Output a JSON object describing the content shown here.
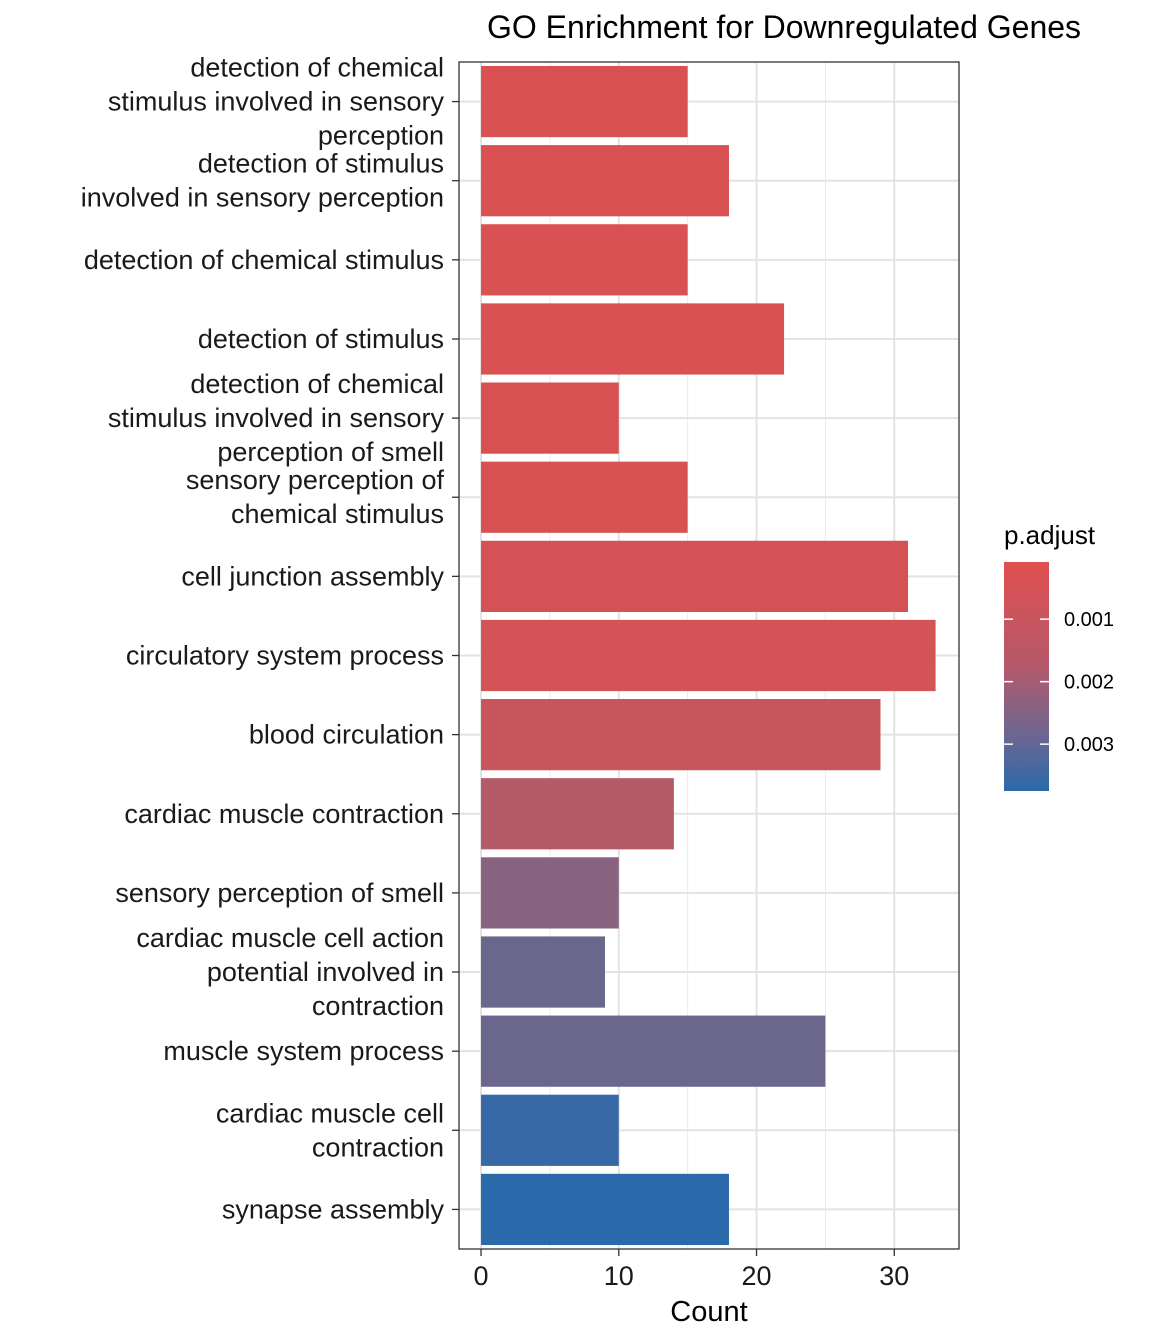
{
  "chart_data": {
    "type": "bar",
    "orientation": "horizontal",
    "title": "GO Enrichment for Downregulated Genes",
    "xlabel": "Count",
    "ylabel": "",
    "xlim": [
      -1.6,
      34.7
    ],
    "xticks": [
      0,
      10,
      20,
      30
    ],
    "grid": true,
    "legend": {
      "title": "p.adjust",
      "placement": "right",
      "type": "colorbar",
      "range": [
        8.5e-05,
        0.00375
      ],
      "ticks": [
        {
          "value": 0.001,
          "label": "0.001"
        },
        {
          "value": 0.002,
          "label": "0.002"
        },
        {
          "value": 0.003,
          "label": "0.003"
        }
      ],
      "low_color": "#e04f4f",
      "high_color": "#2b6aaa"
    },
    "categories": [
      {
        "lines": [
          "detection of chemical",
          "stimulus involved in sensory",
          "perception"
        ],
        "value": 15,
        "color": "#d95152"
      },
      {
        "lines": [
          "detection of stimulus",
          "involved in sensory perception"
        ],
        "value": 18,
        "color": "#d95152"
      },
      {
        "lines": [
          "detection of chemical stimulus"
        ],
        "value": 15,
        "color": "#d95152"
      },
      {
        "lines": [
          "detection of stimulus"
        ],
        "value": 22,
        "color": "#d95152"
      },
      {
        "lines": [
          "detection of chemical",
          "stimulus involved in sensory",
          "perception of smell"
        ],
        "value": 10,
        "color": "#d75153"
      },
      {
        "lines": [
          "sensory perception of",
          "chemical stimulus"
        ],
        "value": 15,
        "color": "#d75153"
      },
      {
        "lines": [
          "cell junction assembly"
        ],
        "value": 31,
        "color": "#d45256"
      },
      {
        "lines": [
          "circulatory system process"
        ],
        "value": 33,
        "color": "#d35357"
      },
      {
        "lines": [
          "blood circulation"
        ],
        "value": 29,
        "color": "#c6555c"
      },
      {
        "lines": [
          "cardiac muscle contraction"
        ],
        "value": 14,
        "color": "#b55a68"
      },
      {
        "lines": [
          "sensory perception of smell"
        ],
        "value": 10,
        "color": "#88637f"
      },
      {
        "lines": [
          "cardiac muscle cell action",
          "potential involved in",
          "contraction"
        ],
        "value": 9,
        "color": "#6b668c"
      },
      {
        "lines": [
          "muscle system process"
        ],
        "value": 25,
        "color": "#6b668c"
      },
      {
        "lines": [
          "cardiac muscle cell",
          "contraction"
        ],
        "value": 10,
        "color": "#3769a7"
      },
      {
        "lines": [
          "synapse assembly"
        ],
        "value": 18,
        "color": "#2b6aaa"
      }
    ]
  }
}
